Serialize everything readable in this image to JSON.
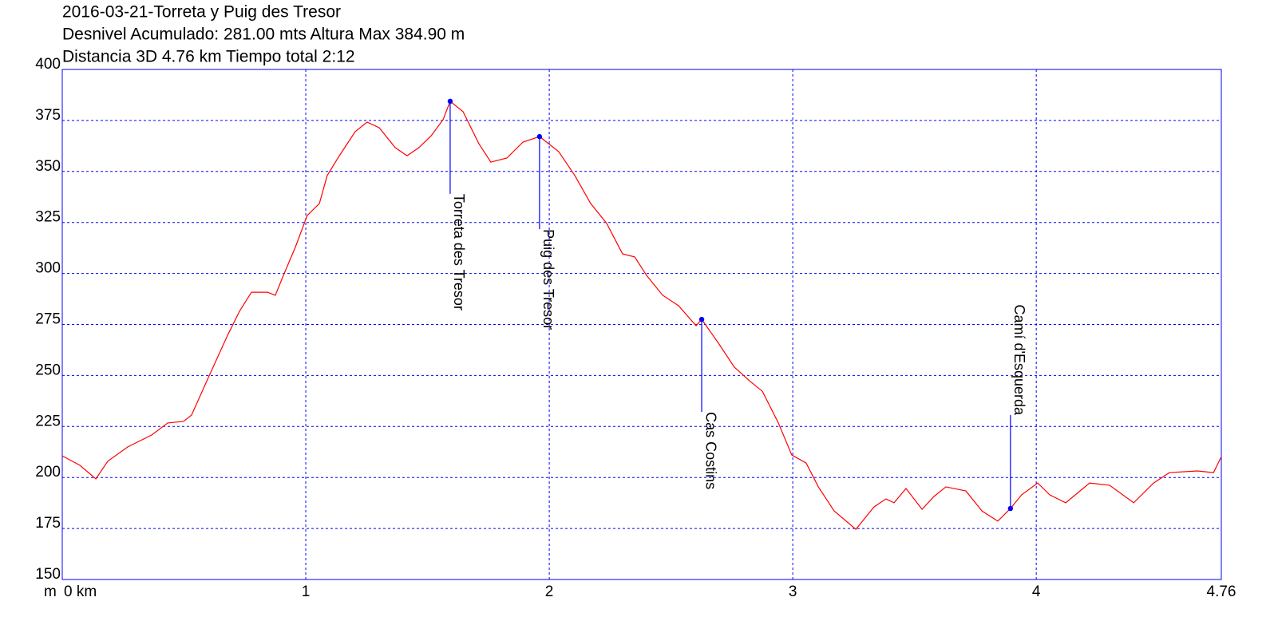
{
  "chart_data": {
    "type": "line",
    "title_lines": [
      "2016-03-21-Torreta y Puig des Tresor",
      "Desnivel Acumulado: 281.00 mts  Altura Max 384.90 m",
      "Distancia 3D 4.76 km  Tiempo total 2:12"
    ],
    "y_label": "m",
    "xlim": [
      0,
      4.76
    ],
    "ylim": [
      150,
      400
    ],
    "xticks": [
      {
        "value": 0,
        "label": "0 km"
      },
      1,
      2,
      3,
      4,
      4.76
    ],
    "yticks": [
      150,
      175,
      200,
      225,
      250,
      275,
      300,
      325,
      350,
      375,
      400
    ],
    "grid": true,
    "series": [
      {
        "color": "#ff0000",
        "x": [
          0,
          0.072,
          0.138,
          0.187,
          0.269,
          0.367,
          0.433,
          0.498,
          0.531,
          0.597,
          0.679,
          0.728,
          0.777,
          0.843,
          0.875,
          0.908,
          0.957,
          1.006,
          1.056,
          1.088,
          1.138,
          1.203,
          1.252,
          1.302,
          1.367,
          1.416,
          1.465,
          1.515,
          1.564,
          1.593,
          1.646,
          1.711,
          1.76,
          1.826,
          1.892,
          1.96,
          2.039,
          2.105,
          2.17,
          2.236,
          2.301,
          2.351,
          2.4,
          2.466,
          2.531,
          2.58,
          2.603,
          2.626,
          2.695,
          2.76,
          2.826,
          2.875,
          2.941,
          2.996,
          3.055,
          3.105,
          3.17,
          3.259,
          3.334,
          3.383,
          3.416,
          3.465,
          3.531,
          3.58,
          3.629,
          3.711,
          3.777,
          3.842,
          3.894,
          3.94,
          4.006,
          4.055,
          4.121,
          4.219,
          4.301,
          4.4,
          4.482,
          4.547,
          4.662,
          4.728,
          4.76
        ],
        "values": [
          210.6,
          206,
          199.3,
          208,
          215,
          220.8,
          226.7,
          227.5,
          230.6,
          248.2,
          269.7,
          281.5,
          290.8,
          290.8,
          289.3,
          299,
          312.8,
          328.4,
          334.3,
          348,
          357.7,
          369.5,
          374.2,
          371.4,
          361.7,
          357.7,
          361.7,
          367.5,
          375.4,
          384.4,
          379.3,
          363.6,
          354.6,
          356.6,
          364.4,
          367.1,
          359.7,
          348,
          334.3,
          324.5,
          309.6,
          308.1,
          299,
          289.3,
          284.2,
          277.5,
          274.4,
          277.5,
          265.8,
          254.1,
          247,
          242.3,
          226.7,
          211,
          207.1,
          195.4,
          183.6,
          174.6,
          185.6,
          189.5,
          187.6,
          194.6,
          184.4,
          190.7,
          195.4,
          193.4,
          183.6,
          178.6,
          184.8,
          191.5,
          197.3,
          191.5,
          187.6,
          197.3,
          196.2,
          187.6,
          197.3,
          202.4,
          203.2,
          202.4,
          210.2
        ]
      }
    ],
    "waypoints": [
      {
        "label": "Torreta des Tresor",
        "x": 1.593,
        "y": 384.4,
        "color": "#0000ff"
      },
      {
        "label": "Puig des Tresor",
        "x": 1.96,
        "y": 367.1,
        "color": "#0000ff"
      },
      {
        "label": "Cas Costins",
        "x": 2.626,
        "y": 277.5,
        "color": "#0000ff"
      },
      {
        "label": "Camí d'Esquerda",
        "x": 3.894,
        "y": 184.8,
        "color": "#0000ff"
      }
    ]
  }
}
